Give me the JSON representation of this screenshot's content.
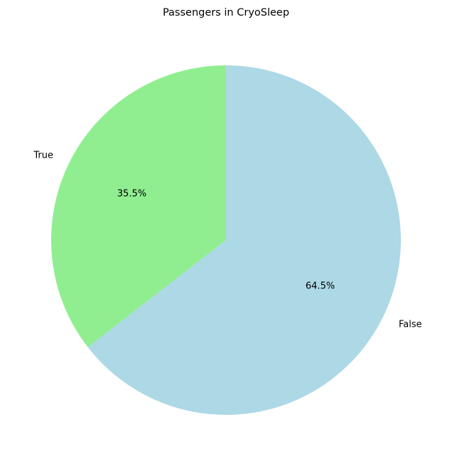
{
  "chart_data": {
    "type": "pie",
    "title": "Passengers in CryoSleep",
    "categories": [
      "False",
      "True"
    ],
    "values": [
      64.5,
      35.5
    ],
    "value_labels": [
      "64.5%",
      "35.5%"
    ],
    "colors": [
      "#add8e6",
      "#90ee90"
    ],
    "start_angle_deg": 90,
    "direction": "clockwise",
    "legend": "none"
  }
}
